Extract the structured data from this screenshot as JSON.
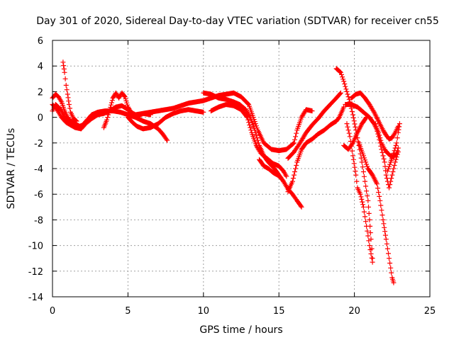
{
  "chart_data": {
    "type": "scatter",
    "title": "Day 301 of 2020, Sidereal Day-to-day VTEC variation (SDTVAR) for receiver cn55",
    "xlabel": "GPS time / hours",
    "ylabel": "SDTVAR / TECUs",
    "xlim": [
      0,
      25
    ],
    "ylim": [
      -14,
      6
    ],
    "xticks": [
      "0",
      "5",
      "10",
      "15",
      "20",
      "25"
    ],
    "yticks": [
      "6",
      "4",
      "2",
      "0",
      "-2",
      "-4",
      "-6",
      "-8",
      "-10",
      "-12",
      "-14"
    ],
    "grid": true,
    "marker": "+",
    "series": [
      {
        "name": "track-1",
        "color": "#ff0000",
        "points": [
          [
            0.0,
            1.5
          ],
          [
            0.2,
            1.8
          ],
          [
            0.4,
            1.6
          ],
          [
            0.6,
            1.2
          ],
          [
            0.8,
            0.5
          ],
          [
            1.0,
            0.0
          ],
          [
            1.2,
            -0.3
          ],
          [
            1.5,
            -0.5
          ],
          [
            1.8,
            -0.7
          ],
          [
            2.0,
            -0.6
          ],
          [
            2.3,
            -0.2
          ],
          [
            2.6,
            0.2
          ],
          [
            3.0,
            0.4
          ],
          [
            3.5,
            0.5
          ],
          [
            4.0,
            0.5
          ],
          [
            4.5,
            0.4
          ],
          [
            5.0,
            0.2
          ],
          [
            5.5,
            0.0
          ],
          [
            6.0,
            0.3
          ],
          [
            6.5,
            0.4
          ],
          [
            7.0,
            0.5
          ],
          [
            7.5,
            0.6
          ],
          [
            8.0,
            0.7
          ],
          [
            8.5,
            0.9
          ],
          [
            9.0,
            1.1
          ],
          [
            9.5,
            1.2
          ],
          [
            10.0,
            1.3
          ],
          [
            10.5,
            1.5
          ],
          [
            11.0,
            1.7
          ],
          [
            11.5,
            1.8
          ],
          [
            12.0,
            1.9
          ],
          [
            12.5,
            1.6
          ],
          [
            13.0,
            1.0
          ],
          [
            13.3,
            0.0
          ],
          [
            13.6,
            -1.0
          ],
          [
            14.0,
            -2.0
          ],
          [
            14.5,
            -2.5
          ],
          [
            15.0,
            -2.6
          ],
          [
            15.5,
            -2.5
          ],
          [
            16.0,
            -2.0
          ],
          [
            16.2,
            -1.0
          ],
          [
            16.5,
            0.0
          ],
          [
            16.8,
            0.6
          ],
          [
            17.2,
            0.5
          ]
        ]
      },
      {
        "name": "track-2",
        "color": "#ff0000",
        "points": [
          [
            0.0,
            1.0
          ],
          [
            0.3,
            0.6
          ],
          [
            0.6,
            0.0
          ],
          [
            0.9,
            -0.4
          ],
          [
            1.2,
            -0.6
          ],
          [
            1.5,
            -0.8
          ],
          [
            1.9,
            -0.9
          ],
          [
            2.2,
            -0.5
          ],
          [
            2.6,
            -0.1
          ],
          [
            3.0,
            0.2
          ],
          [
            3.4,
            0.3
          ],
          [
            3.8,
            0.5
          ],
          [
            4.2,
            0.8
          ],
          [
            4.6,
            0.9
          ],
          [
            5.0,
            0.6
          ],
          [
            5.5,
            0.0
          ],
          [
            6.0,
            -0.3
          ],
          [
            6.5,
            -0.5
          ],
          [
            7.0,
            -0.9
          ],
          [
            7.3,
            -1.3
          ],
          [
            7.6,
            -1.8
          ]
        ]
      },
      {
        "name": "track-3",
        "color": "#ff0000",
        "points": [
          [
            0.7,
            4.3
          ],
          [
            0.8,
            3.5
          ],
          [
            0.9,
            2.5
          ],
          [
            1.0,
            1.8
          ],
          [
            1.1,
            1.0
          ],
          [
            1.2,
            0.4
          ],
          [
            1.4,
            -0.1
          ],
          [
            1.6,
            -0.3
          ]
        ]
      },
      {
        "name": "track-4",
        "color": "#ff0000",
        "points": [
          [
            3.4,
            -0.8
          ],
          [
            3.6,
            -0.2
          ],
          [
            3.8,
            0.6
          ],
          [
            4.0,
            1.5
          ],
          [
            4.2,
            1.9
          ],
          [
            4.4,
            1.5
          ],
          [
            4.6,
            1.9
          ],
          [
            4.8,
            1.6
          ],
          [
            5.0,
            0.8
          ],
          [
            5.2,
            0.4
          ],
          [
            5.5,
            0.2
          ],
          [
            6.0,
            0.3
          ],
          [
            6.5,
            0.2
          ]
        ]
      },
      {
        "name": "track-5",
        "color": "#ff0000",
        "points": [
          [
            5.0,
            0.0
          ],
          [
            5.3,
            -0.4
          ],
          [
            5.6,
            -0.7
          ],
          [
            6.0,
            -0.9
          ],
          [
            6.5,
            -0.8
          ],
          [
            7.0,
            -0.5
          ],
          [
            7.5,
            0.0
          ],
          [
            8.0,
            0.3
          ],
          [
            8.5,
            0.5
          ],
          [
            9.0,
            0.6
          ],
          [
            9.5,
            0.5
          ],
          [
            10.0,
            0.4
          ]
        ]
      },
      {
        "name": "track-6",
        "color": "#ff0000",
        "points": [
          [
            10.0,
            1.9
          ],
          [
            10.5,
            1.8
          ],
          [
            11.0,
            1.5
          ],
          [
            11.5,
            1.4
          ],
          [
            12.0,
            1.2
          ],
          [
            12.4,
            1.0
          ],
          [
            12.8,
            0.6
          ],
          [
            13.1,
            0.0
          ],
          [
            13.4,
            -1.0
          ],
          [
            13.7,
            -2.2
          ],
          [
            14.0,
            -3.0
          ],
          [
            14.3,
            -3.5
          ],
          [
            14.7,
            -4.0
          ],
          [
            15.0,
            -4.5
          ],
          [
            15.3,
            -5.0
          ],
          [
            15.6,
            -5.6
          ],
          [
            15.9,
            -6.0
          ],
          [
            16.2,
            -6.5
          ],
          [
            16.5,
            -7.0
          ]
        ]
      },
      {
        "name": "track-7",
        "color": "#ff0000",
        "points": [
          [
            10.5,
            0.5
          ],
          [
            11.0,
            0.8
          ],
          [
            11.5,
            1.0
          ],
          [
            12.0,
            0.9
          ],
          [
            12.5,
            0.6
          ],
          [
            12.9,
            0.0
          ],
          [
            13.2,
            -1.2
          ],
          [
            13.5,
            -2.2
          ],
          [
            13.8,
            -2.8
          ],
          [
            14.2,
            -3.2
          ],
          [
            14.6,
            -3.6
          ],
          [
            15.0,
            -3.8
          ],
          [
            15.3,
            -4.2
          ],
          [
            15.5,
            -4.6
          ]
        ]
      },
      {
        "name": "track-8",
        "color": "#ff0000",
        "points": [
          [
            13.7,
            -3.3
          ],
          [
            14.0,
            -3.8
          ],
          [
            14.3,
            -4.0
          ],
          [
            14.6,
            -4.3
          ],
          [
            14.9,
            -4.5
          ],
          [
            15.1,
            -4.7
          ]
        ]
      },
      {
        "name": "track-9",
        "color": "#ff0000",
        "points": [
          [
            15.6,
            -5.8
          ],
          [
            15.9,
            -5.0
          ],
          [
            16.2,
            -3.5
          ],
          [
            16.5,
            -2.5
          ],
          [
            16.8,
            -2.0
          ],
          [
            17.2,
            -1.7
          ],
          [
            17.6,
            -1.3
          ],
          [
            18.0,
            -1.0
          ],
          [
            18.4,
            -0.6
          ],
          [
            18.8,
            -0.3
          ],
          [
            19.0,
            0.0
          ],
          [
            19.3,
            0.8
          ]
        ]
      },
      {
        "name": "track-10",
        "color": "#ff0000",
        "points": [
          [
            15.6,
            -3.2
          ],
          [
            16.0,
            -2.7
          ],
          [
            16.4,
            -2.0
          ],
          [
            16.8,
            -1.2
          ],
          [
            17.2,
            -0.6
          ],
          [
            17.6,
            -0.1
          ],
          [
            18.0,
            0.5
          ],
          [
            18.4,
            1.0
          ],
          [
            18.8,
            1.5
          ],
          [
            19.1,
            1.9
          ]
        ]
      },
      {
        "name": "track-11",
        "color": "#ff0000",
        "points": [
          [
            18.8,
            3.8
          ],
          [
            19.1,
            3.5
          ],
          [
            19.3,
            2.8
          ],
          [
            19.5,
            2.0
          ],
          [
            19.7,
            1.2
          ],
          [
            19.9,
            0.2
          ],
          [
            20.1,
            -1.0
          ],
          [
            20.3,
            -2.2
          ],
          [
            20.5,
            -3.5
          ],
          [
            20.7,
            -5.0
          ],
          [
            20.9,
            -6.5
          ],
          [
            21.0,
            -8.0
          ],
          [
            21.1,
            -9.5
          ],
          [
            21.2,
            -11.0
          ]
        ]
      },
      {
        "name": "track-12",
        "color": "#ff0000",
        "points": [
          [
            19.5,
            -0.5
          ],
          [
            19.7,
            -1.5
          ],
          [
            19.9,
            -3.0
          ],
          [
            20.1,
            -4.5
          ],
          [
            20.2,
            -5.5
          ],
          [
            20.4,
            -6.0
          ],
          [
            20.6,
            -7.0
          ],
          [
            20.8,
            -8.5
          ],
          [
            21.0,
            -10.0
          ],
          [
            21.2,
            -11.3
          ]
        ]
      },
      {
        "name": "track-13",
        "color": "#ff0000",
        "points": [
          [
            19.8,
            1.5
          ],
          [
            20.1,
            1.8
          ],
          [
            20.4,
            1.9
          ],
          [
            20.7,
            1.5
          ],
          [
            21.0,
            1.0
          ],
          [
            21.3,
            0.4
          ],
          [
            21.6,
            -0.3
          ],
          [
            21.9,
            -1.0
          ],
          [
            22.1,
            -1.4
          ],
          [
            22.3,
            -1.7
          ],
          [
            22.5,
            -1.6
          ],
          [
            22.7,
            -1.2
          ],
          [
            22.9,
            -0.7
          ]
        ]
      },
      {
        "name": "track-14",
        "color": "#ff0000",
        "points": [
          [
            19.4,
            1.0
          ],
          [
            19.8,
            1.0
          ],
          [
            20.2,
            0.8
          ],
          [
            20.6,
            0.4
          ],
          [
            21.0,
            0.0
          ],
          [
            21.3,
            -0.5
          ],
          [
            21.6,
            -1.2
          ],
          [
            21.8,
            -2.0
          ],
          [
            22.0,
            -2.5
          ],
          [
            22.2,
            -2.8
          ],
          [
            22.4,
            -3.0
          ],
          [
            22.6,
            -3.1
          ],
          [
            22.8,
            -2.8
          ],
          [
            22.9,
            -2.4
          ]
        ]
      },
      {
        "name": "track-15",
        "color": "#ff0000",
        "points": [
          [
            19.3,
            -2.2
          ],
          [
            19.6,
            -2.5
          ],
          [
            19.9,
            -2.0
          ],
          [
            20.2,
            -1.2
          ],
          [
            20.5,
            -0.5
          ],
          [
            20.8,
            0.0
          ]
        ]
      },
      {
        "name": "track-16",
        "color": "#ff0000",
        "points": [
          [
            20.3,
            -2.0
          ],
          [
            20.6,
            -3.0
          ],
          [
            20.9,
            -4.0
          ],
          [
            21.2,
            -4.5
          ],
          [
            21.5,
            -5.2
          ],
          [
            21.7,
            -6.5
          ],
          [
            21.9,
            -8.0
          ],
          [
            22.1,
            -9.5
          ],
          [
            22.3,
            -11.0
          ],
          [
            22.5,
            -12.5
          ],
          [
            22.6,
            -12.9
          ]
        ]
      },
      {
        "name": "track-17",
        "color": "#ff0000",
        "points": [
          [
            21.4,
            -0.5
          ],
          [
            21.6,
            -1.5
          ],
          [
            21.8,
            -2.5
          ],
          [
            22.0,
            -3.5
          ],
          [
            22.1,
            -4.5
          ],
          [
            22.3,
            -5.5
          ],
          [
            22.5,
            -4.5
          ],
          [
            22.7,
            -3.5
          ],
          [
            22.9,
            -2.7
          ]
        ]
      },
      {
        "name": "track-18",
        "color": "#ff0000",
        "points": [
          [
            22.2,
            -4.2
          ],
          [
            22.4,
            -3.5
          ],
          [
            22.6,
            -2.8
          ],
          [
            22.8,
            -2.0
          ],
          [
            22.9,
            -1.2
          ],
          [
            23.0,
            -0.5
          ]
        ]
      },
      {
        "name": "track-19",
        "color": "#ff0000",
        "points": [
          [
            0.0,
            0.5
          ],
          [
            0.2,
            1.0
          ],
          [
            0.4,
            0.8
          ],
          [
            0.6,
            0.5
          ],
          [
            0.8,
            0.0
          ],
          [
            1.0,
            -0.2
          ],
          [
            1.3,
            -0.4
          ]
        ]
      }
    ]
  }
}
